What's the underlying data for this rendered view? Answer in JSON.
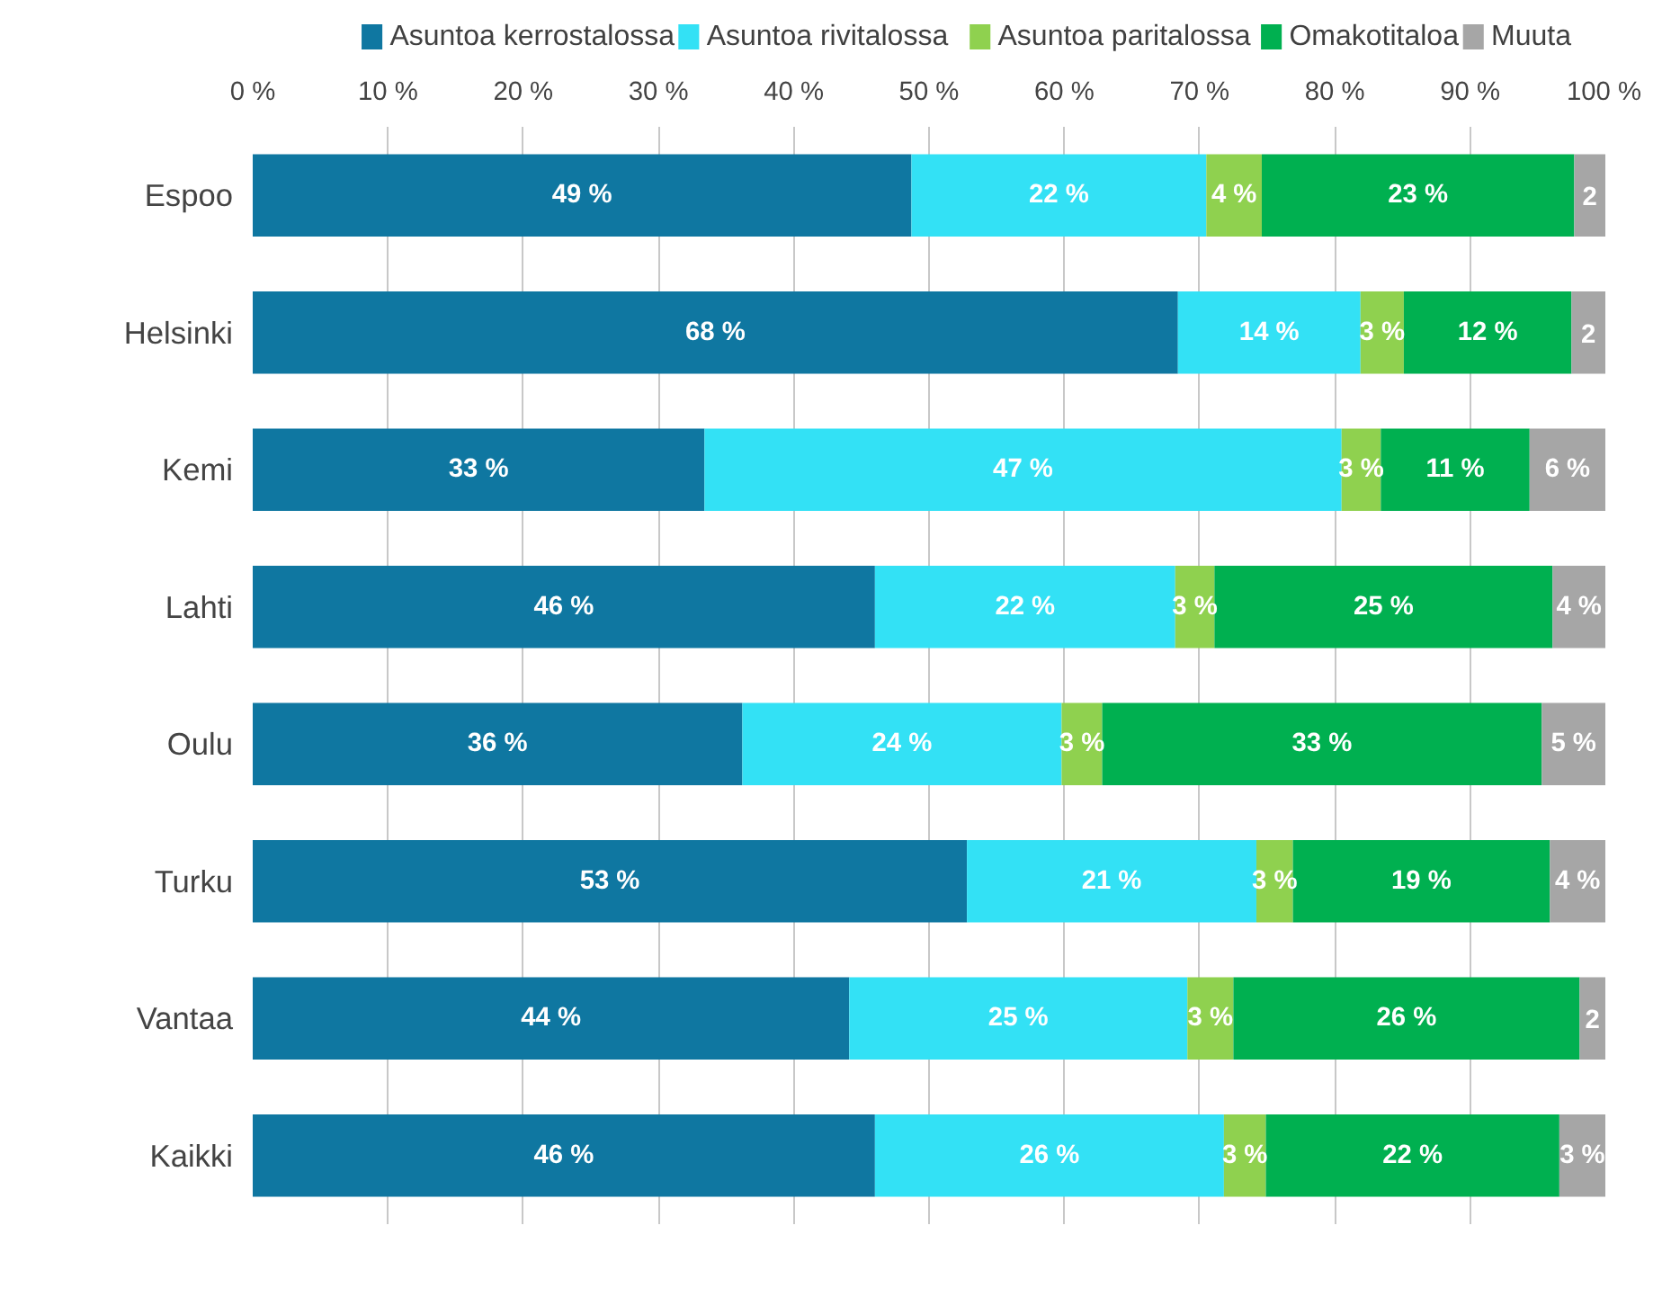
{
  "chart_data": {
    "type": "bar",
    "orientation": "horizontal",
    "stacked": true,
    "categories": [
      "Espoo",
      "Helsinki",
      "Kemi",
      "Lahti",
      "Oulu",
      "Turku",
      "Vantaa",
      "Kaikki"
    ],
    "series": [
      {
        "name": "Asuntoa kerrostalossa",
        "color": "#0f77a1",
        "values": [
          48.7,
          68.4,
          33.4,
          46.0,
          36.2,
          52.8,
          44.1,
          46.0
        ],
        "value_labels": [
          "49 %",
          "68 %",
          "33 %",
          "46 %",
          "36 %",
          "53 %",
          "44 %",
          "46 %"
        ]
      },
      {
        "name": "Asuntoa rivitalossa",
        "color": "#33e1f5",
        "values": [
          21.8,
          13.5,
          47.1,
          22.2,
          23.6,
          21.4,
          25.0,
          25.8
        ],
        "value_labels": [
          "22 %",
          "14 %",
          "47 %",
          "22 %",
          "24 %",
          "21 %",
          "25 %",
          "26 %"
        ]
      },
      {
        "name": "Asuntoa paritalossa",
        "color": "#8fd14f",
        "values": [
          4.1,
          3.2,
          2.9,
          2.9,
          3.0,
          2.7,
          3.4,
          3.1
        ],
        "value_labels": [
          "4 %",
          "3 %",
          "3 %",
          "3 %",
          "3 %",
          "3 %",
          "3 %",
          "3 %"
        ]
      },
      {
        "name": "Omakotitaloa",
        "color": "#00b050",
        "values": [
          23.1,
          12.4,
          11.0,
          25.0,
          32.5,
          19.0,
          25.6,
          21.7
        ],
        "value_labels": [
          "23 %",
          "12 %",
          "11 %",
          "25 %",
          "33 %",
          "19 %",
          "26 %",
          "22 %"
        ]
      },
      {
        "name": "Muuta",
        "color": "#a6a6a6",
        "values": [
          2.3,
          2.5,
          5.6,
          3.9,
          4.7,
          4.1,
          1.9,
          3.4
        ],
        "value_labels": [
          "2",
          "2",
          "6 %",
          "4 %",
          "5 %",
          "4 %",
          "2",
          "3 %"
        ]
      }
    ],
    "xlim": [
      0,
      100
    ],
    "xticks": [
      {
        "value": 0,
        "label": "0 %"
      },
      {
        "value": 10,
        "label": "10 %"
      },
      {
        "value": 20,
        "label": "20 %"
      },
      {
        "value": 30,
        "label": "30 %"
      },
      {
        "value": 40,
        "label": "40 %"
      },
      {
        "value": 50,
        "label": "50 %"
      },
      {
        "value": 60,
        "label": "60 %"
      },
      {
        "value": 70,
        "label": "70 %"
      },
      {
        "value": 80,
        "label": "80 %"
      },
      {
        "value": 90,
        "label": "90 %"
      },
      {
        "value": 100,
        "label": "100 %"
      }
    ],
    "grid": "x",
    "legend": "top"
  }
}
